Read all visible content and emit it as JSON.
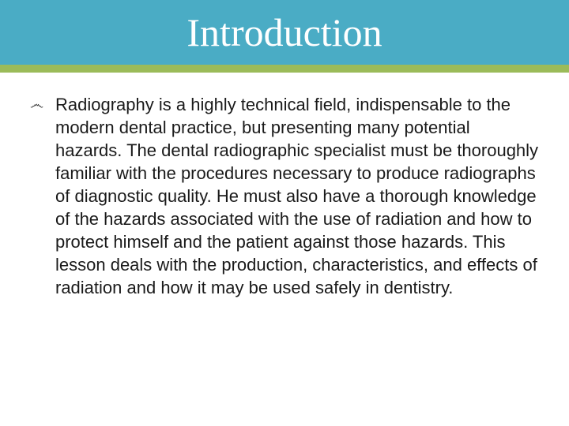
{
  "header": {
    "title": "Introduction",
    "bg_color": "#4aacc5",
    "accent_color": "#9bbb59",
    "title_color": "#ffffff",
    "title_fontsize": 50,
    "title_fontweight": 400,
    "title_font": "\"Times New Roman\", Times, serif"
  },
  "body": {
    "bullet_glyph": "෴",
    "text": "Radiography is a highly technical field, indispensable to the modern dental practice, but presenting many potential hazards. The dental radiographic specialist must be thoroughly familiar with the procedures necessary to produce radiographs of diagnostic quality. He must also have a thorough knowledge of the hazards associated with the use of radiation and how to protect himself and the patient against those hazards. This lesson deals with the production, characteristics, and effects of radiation and how it may be used safely in dentistry.",
    "fontsize": 22,
    "lineheight": 29,
    "color": "#1a1a1a",
    "font": "Arial, Helvetica, sans-serif"
  }
}
